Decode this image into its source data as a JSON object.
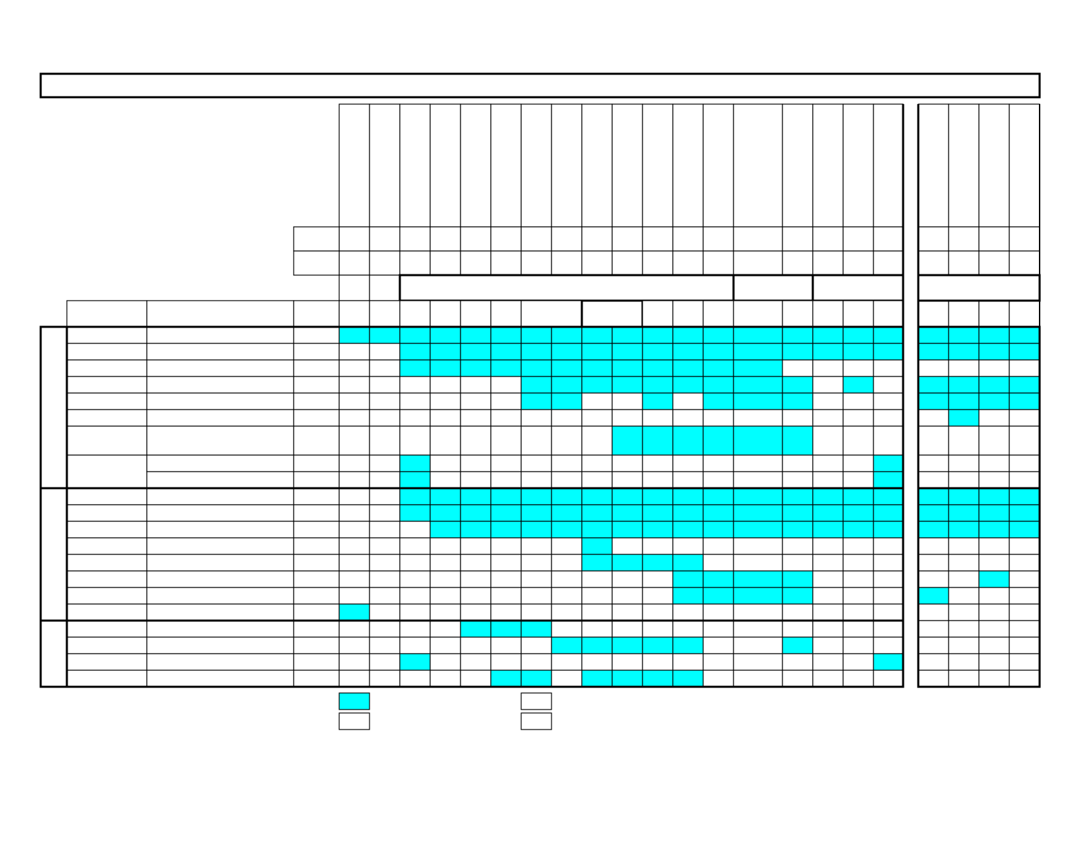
{
  "table": {
    "highlight_color": "#00ffff"
  }
}
